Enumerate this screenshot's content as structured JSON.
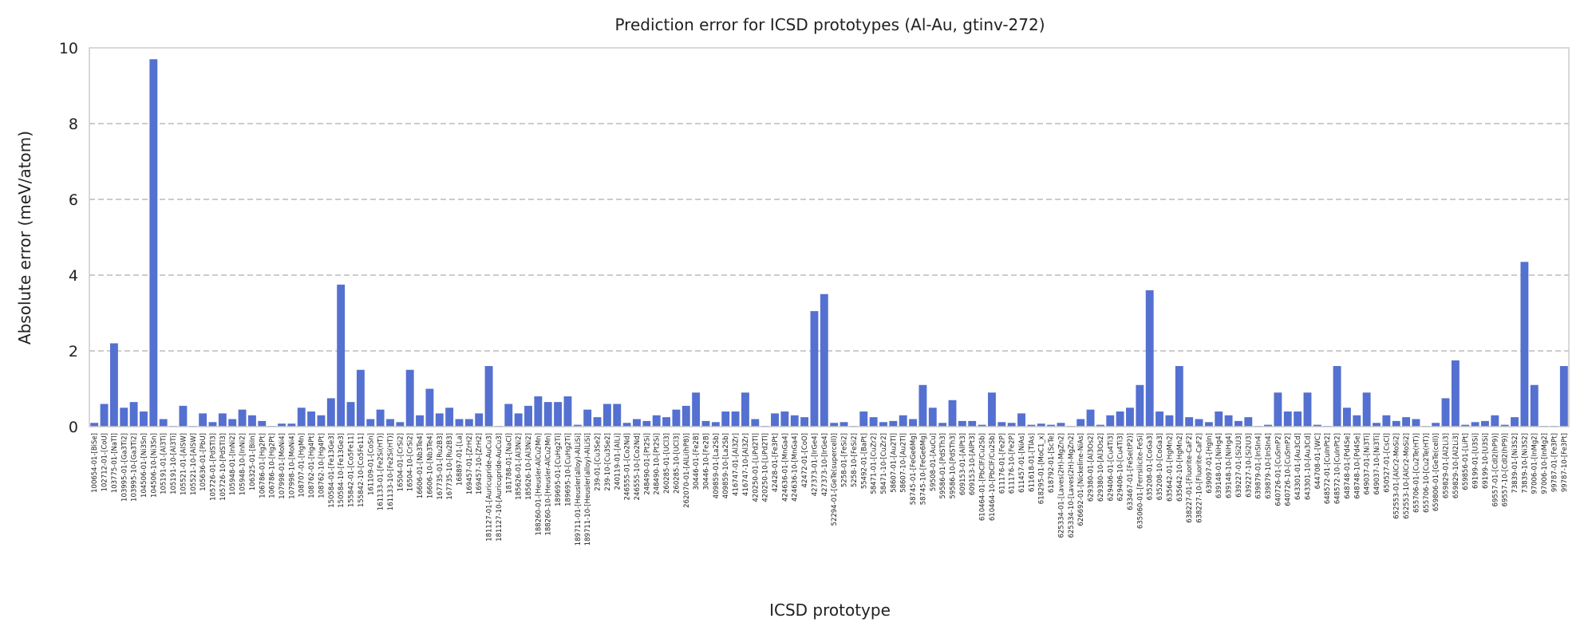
{
  "chart_data": {
    "type": "bar",
    "title": "Prediction error for ICSD prototypes (Al-Au, gtinv-272)",
    "x_label": "ICSD prototype",
    "y_label": "Absolute error (meV/atom)",
    "color": "#5470d0",
    "grid": true,
    "ylim": [
      0,
      10
    ],
    "yticks": [
      0,
      2,
      4,
      6,
      8,
      10
    ],
    "categories": [
      "100654-01-[BiSe]",
      "102712-01-[CoU]",
      "103775-01-[NaTl]",
      "103995-01-[Ga3Ti2]",
      "103995-10-[Ga3Ti2]",
      "104506-01-[Ni3Sn]",
      "104506-10-[Ni3Sn]",
      "105191-01-[Al3Ti]",
      "105191-10-[Al3Ti]",
      "105521-01-[AlSW]",
      "105521-10-[AlSW]",
      "105636-01-[PbU]",
      "105726-01-[PdSTl3]",
      "105726-10-[PdSTl3]",
      "105948-01-[InNi2]",
      "105948-10-[InNi2]",
      "106325-01-[BiIn]",
      "106786-01-[Hg2Pt]",
      "106786-10-[Hg2Pt]",
      "107998-01-[MoNi4]",
      "107998-10-[MoNi4]",
      "108707-01-[HgMn]",
      "108762-01-[Hg4Pt]",
      "108762-10-[Hg4Pt]",
      "150584-01-[Fe13Ge3]",
      "150584-10-[Fe13Ge3]",
      "155842-01-[Co5Fe11]",
      "155842-10-[Co5Fe11]",
      "161109-01-[CoSn]",
      "161133-01-[Fe2Si(HT)]",
      "161133-10-[Fe2Si(HT)]",
      "16504-01-[CrSi2]",
      "16504-10-[CrSi2]",
      "16606-01-[Nb3Te4]",
      "16606-10-[Nb3Te4]",
      "167735-01-[Ru2B3]",
      "167735-10-[Ru2B3]",
      "168897-01-[La]",
      "169457-01-[ZrH2]",
      "169457-10-[ZrH2]",
      "181127-01-[Auricupride-AuCu3]",
      "181127-10-[Auricupride-AuCu3]",
      "181788-01-[NaCl]",
      "185626-01-[Al3Ni2]",
      "185626-10-[Al3Ni2]",
      "188260-01-[Heusler-AlCu2Mn]",
      "188260-10-[Heusler-AlCu2Mn]",
      "189695-01-[CuHg2Ti]",
      "189695-10-[CuHg2Ti]",
      "189711-01-[Heusler(alloy)-AlLiSi]",
      "189711-10-[Heusler(alloy)-AlLiSi]",
      "239-01-[Cu3Se2]",
      "239-10-[Cu3Se2]",
      "240119-01-[AlLi]",
      "246555-01-[Co2Nd]",
      "246555-10-[Co2Nd]",
      "248490-01-[Pt2Si]",
      "248490-10-[Pt2Si]",
      "260285-01-[UCl3]",
      "260285-10-[UCl3]",
      "262070-01-[AlLi(hP8)]",
      "30446-01-[Fe2B]",
      "30446-10-[Fe2B]",
      "409859-01-[La2Sb]",
      "409859-10-[La2Sb]",
      "416747-01-[Al3Zr]",
      "416747-10-[Al3Zr]",
      "420250-01-[LiPd2Tl]",
      "420250-10-[LiPd2Tl]",
      "42428-01-[Fe3Pt]",
      "424636-01-[MnGa4]",
      "424636-10-[MnGa4]",
      "42472-01-[CoO]",
      "427373-01-[IrGe4]",
      "427373-10-[IrGe4]",
      "52294-01-[GeTe(supercell)]",
      "5258-01-[FeSi2]",
      "5258-10-[FeSi2]",
      "55492-01-[BaPt]",
      "58471-01-[CuZr2]",
      "58471-10-[CuZr2]",
      "58607-01-[Au2Tl]",
      "58607-10-[Au2Tl]",
      "58745-01-[FeGe6Mg]",
      "58745-10-[FeGe6Mg]",
      "59508-01-[AuCu]",
      "59586-01-[PdSTh3]",
      "59586-10-[PdSTh3]",
      "609153-01-[AlPt3]",
      "609153-10-[AlPt3]",
      "610464-01-[PbClF/Cu2Sb]",
      "610464-10-[PbClF/Cu2Sb]",
      "611176-01-[Fe2P]",
      "611176-10-[Fe2P]",
      "611457-01-[NiAs]",
      "611618-01-[TlAs]",
      "618295-01-[MoC1_x]",
      "618792-01-[ScTe]",
      "625334-01-[Laves(2H)-MgZn2]",
      "625334-10-[Laves(2H)-MgZn2]",
      "626692-01-[Nickeline-NiAs]",
      "629380-01-[Al3Os2]",
      "629380-10-[Al3Os2]",
      "629406-01-[Cu4Ti3]",
      "629406-10-[Cu4Ti3]",
      "633467-01-[FeSe(tP2)]",
      "635060-01-[Ferrsilicite-FeSi]",
      "635208-01-[CoGa3]",
      "635208-10-[CoGa3]",
      "635642-01-[HgMn2]",
      "635642-10-[HgMn2]",
      "638227-01-[Fluorite-CaF2]",
      "638227-10-[Fluorite-CaF2]",
      "639097-01-[HgIn]",
      "639148-01-[NiHg4]",
      "639148-10-[NiHg4]",
      "639227-01-[Si2U3]",
      "639227-10-[Si2U3]",
      "639879-01-[InSIn4]",
      "639879-10-[InSIn4]",
      "640726-01-[CuSmP2]",
      "640726-10-[CuSmP2]",
      "643301-01-[Au3Cd]",
      "643301-10-[Au3Cd]",
      "644708-01-[WC]",
      "648572-01-[CuInPt2]",
      "648572-10-[CuInPt2]",
      "648748-01-[Pd4Se]",
      "648748-10-[Pd4Se]",
      "649037-01-[Ni3Ti]",
      "649037-10-[Ni3Ti]",
      "650527-01-[CsCl]",
      "652553-01-[AlCr2-MoSi2]",
      "652553-10-[AlCr2-MoSi2]",
      "655706-01-[Cu2Te(HT)]",
      "655706-10-[Cu2Te(HT)]",
      "659806-01-[GeTe(cell)]",
      "659829-01-[Al2Li3]",
      "659829-10-[Al2Li3]",
      "659856-01-[LiPt]",
      "69199-01-[U3Si]",
      "69199-10-[U3Si]",
      "69557-01-[CdI2(hP9)]",
      "69557-10-[CdI2(hP9)]",
      "73839-01-[Ni3S2]",
      "73839-10-[Ni3S2]",
      "97006-01-[InMg2]",
      "97006-10-[InMg2]",
      "99787-01-[Fe3Pt]",
      "99787-10-[Fe3Pt]"
    ],
    "values": [
      0.1,
      0.6,
      2.2,
      0.5,
      0.65,
      0.4,
      9.7,
      0.2,
      0.02,
      0.55,
      0.02,
      0.35,
      0.12,
      0.35,
      0.2,
      0.45,
      0.3,
      0.15,
      0.02,
      0.08,
      0.08,
      0.5,
      0.4,
      0.3,
      0.75,
      3.75,
      0.65,
      1.5,
      0.2,
      0.45,
      0.2,
      0.12,
      1.5,
      0.3,
      1.0,
      0.35,
      0.5,
      0.2,
      0.2,
      0.35,
      1.6,
      0.02,
      0.6,
      0.35,
      0.55,
      0.8,
      0.65,
      0.65,
      0.8,
      0.05,
      0.45,
      0.25,
      0.6,
      0.6,
      0.1,
      0.2,
      0.15,
      0.3,
      0.25,
      0.45,
      0.55,
      0.9,
      0.15,
      0.12,
      0.4,
      0.4,
      0.9,
      0.2,
      0.02,
      0.35,
      0.4,
      0.3,
      0.25,
      3.05,
      3.5,
      0.1,
      0.12,
      0.02,
      0.4,
      0.25,
      0.12,
      0.15,
      0.3,
      0.2,
      1.1,
      0.5,
      0.1,
      0.7,
      0.15,
      0.15,
      0.05,
      0.9,
      0.12,
      0.1,
      0.35,
      0.05,
      0.08,
      0.05,
      0.1,
      0.02,
      0.2,
      0.45,
      0.05,
      0.3,
      0.4,
      0.5,
      1.1,
      3.6,
      0.4,
      0.3,
      1.6,
      0.25,
      0.2,
      0.12,
      0.4,
      0.3,
      0.15,
      0.25,
      0.02,
      0.05,
      0.9,
      0.4,
      0.4,
      0.9,
      0.05,
      0.02,
      1.6,
      0.5,
      0.3,
      0.9,
      0.1,
      0.3,
      0.15,
      0.25,
      0.2,
      0.02,
      0.1,
      0.75,
      1.75,
      0.05,
      0.12,
      0.15,
      0.3,
      0.05,
      0.25,
      4.35,
      1.1,
      0.02,
      0.02,
      1.6
    ]
  }
}
